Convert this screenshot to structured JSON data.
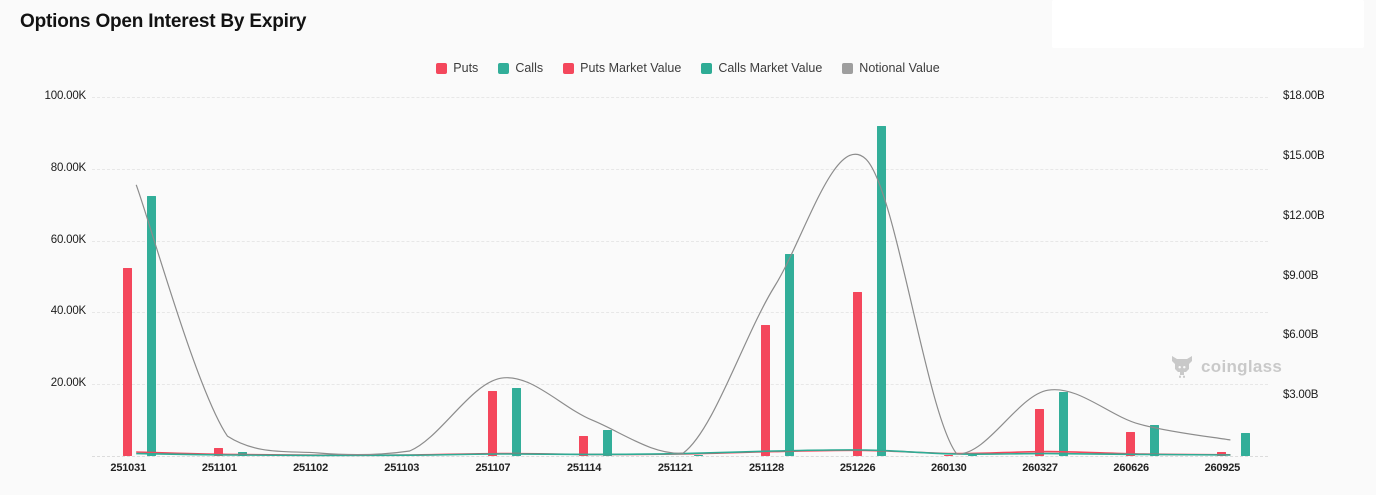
{
  "header": {
    "title": "Options Open Interest By Expiry"
  },
  "legend": {
    "items": [
      {
        "label": "Puts",
        "color": "#f4475c"
      },
      {
        "label": "Calls",
        "color": "#32ae99"
      },
      {
        "label": "Puts Market Value",
        "color": "#f4475c"
      },
      {
        "label": "Calls Market Value",
        "color": "#2eac95"
      },
      {
        "label": "Notional Value",
        "color": "#9e9e9e"
      }
    ]
  },
  "watermark": {
    "label": "coinglass"
  },
  "chart_data": {
    "type": "bar+line combo (dual axis)",
    "title": "Options Open Interest By Expiry",
    "categories": [
      "251031",
      "251101",
      "251102",
      "251103",
      "251107",
      "251114",
      "251121",
      "251128",
      "251226",
      "260130",
      "260327",
      "260626",
      "260925"
    ],
    "series": [
      {
        "name": "Puts",
        "type": "bar",
        "axis": "left",
        "unit": "K contracts",
        "color": "#f4475c",
        "values": [
          52.5,
          2.1,
          0.2,
          0.1,
          18.0,
          5.6,
          0.2,
          36.5,
          45.8,
          0.3,
          13.0,
          6.6,
          1.0
        ]
      },
      {
        "name": "Calls",
        "type": "bar",
        "axis": "left",
        "unit": "K contracts",
        "color": "#32ae99",
        "values": [
          72.3,
          1.2,
          0.3,
          0.2,
          19.0,
          7.3,
          0.3,
          56.3,
          92.0,
          0.4,
          17.8,
          8.6,
          6.3
        ]
      },
      {
        "name": "Puts Market Value",
        "type": "line",
        "axis": "right",
        "unit": "$B",
        "color": "#f4475c",
        "values": [
          0.2,
          0.08,
          0.04,
          0.05,
          0.12,
          0.08,
          0.1,
          0.22,
          0.28,
          0.12,
          0.22,
          0.1,
          0.06
        ]
      },
      {
        "name": "Calls Market Value",
        "type": "line",
        "axis": "right",
        "unit": "$B",
        "color": "#2eac95",
        "values": [
          0.12,
          0.05,
          0.03,
          0.04,
          0.1,
          0.08,
          0.12,
          0.25,
          0.3,
          0.1,
          0.12,
          0.08,
          0.05
        ]
      },
      {
        "name": "Notional Value",
        "type": "line",
        "axis": "right",
        "unit": "$B",
        "color": "#8c8c8c",
        "values": [
          13.6,
          1.0,
          0.15,
          0.25,
          3.9,
          1.8,
          0.15,
          8.5,
          14.9,
          0.1,
          3.3,
          1.6,
          0.8
        ]
      }
    ],
    "left_axis": {
      "ticks": [
        "100.00K",
        "80.00K",
        "60.00K",
        "40.00K",
        "20.00K"
      ],
      "tick_values": [
        100,
        80,
        60,
        40,
        20
      ],
      "min": 0,
      "max": 100,
      "unit": "K"
    },
    "right_axis": {
      "ticks": [
        "$18.00B",
        "$15.00B",
        "$12.00B",
        "$9.00B",
        "$6.00B",
        "$3.00B"
      ],
      "tick_values": [
        18,
        15,
        12,
        9,
        6,
        3
      ],
      "min": 0,
      "max": 18,
      "unit": "$B"
    },
    "legend_position": "top-center",
    "grid": "dashed-horizontal"
  }
}
